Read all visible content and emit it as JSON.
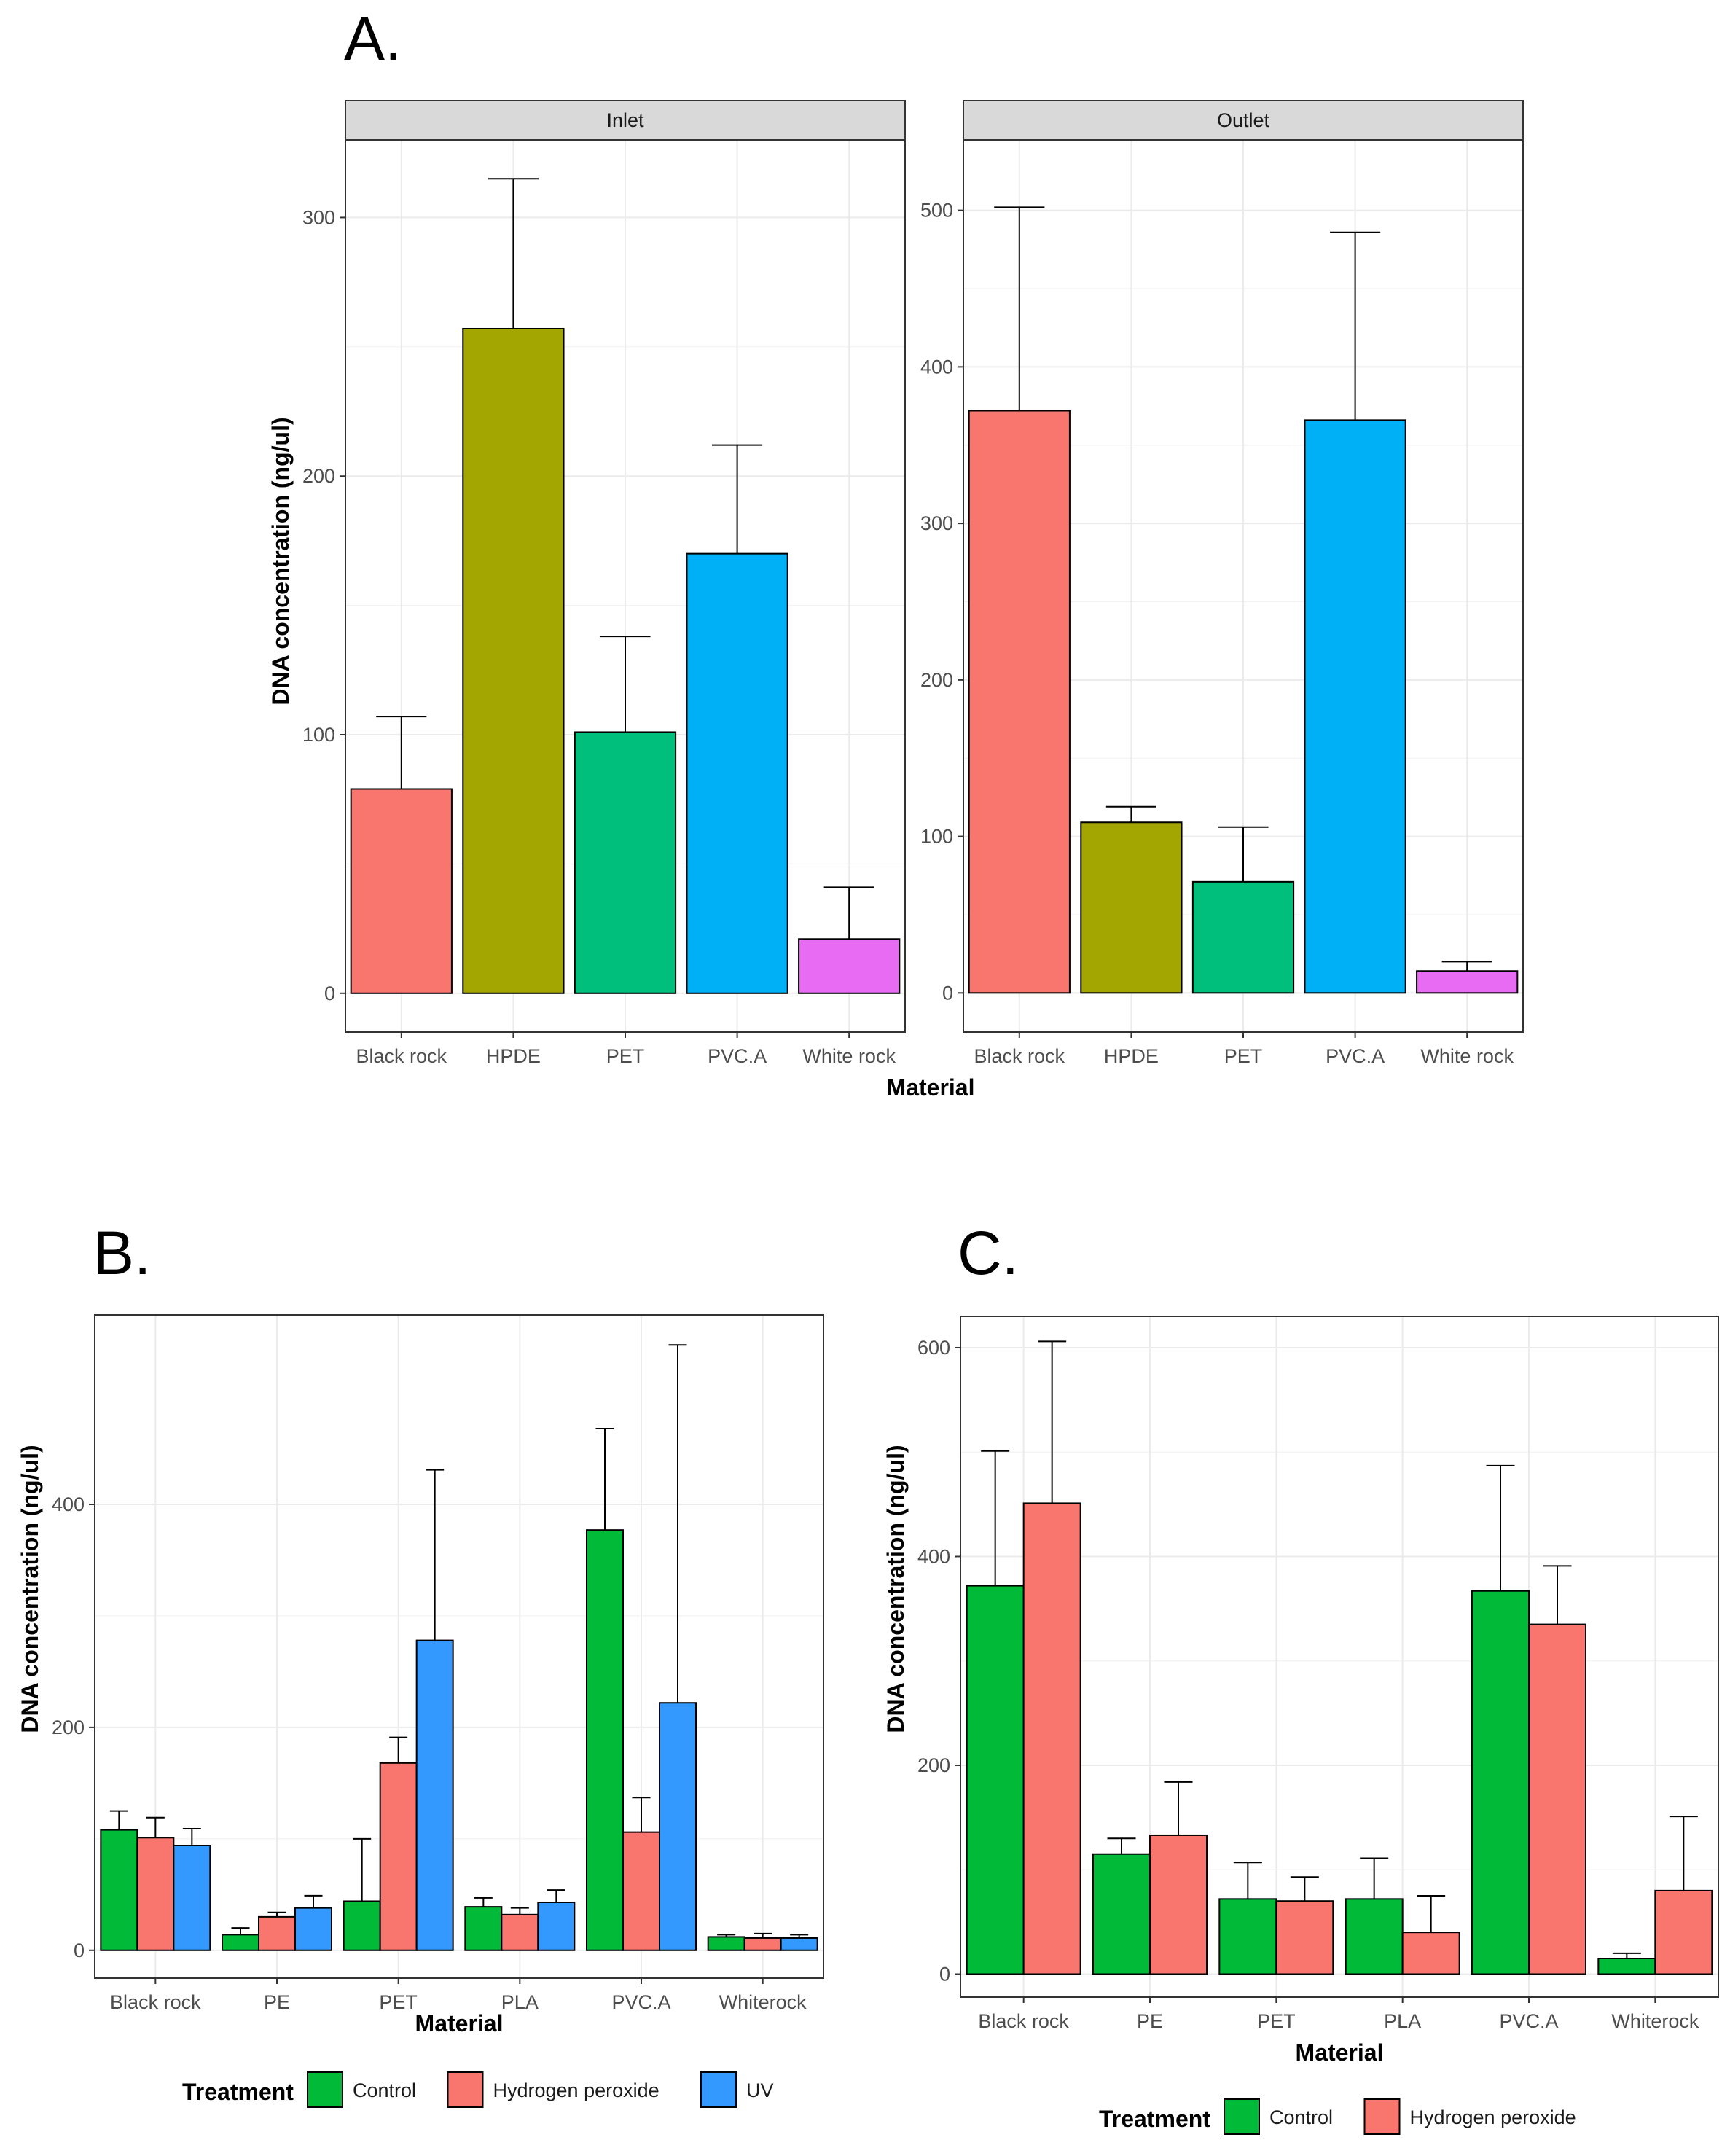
{
  "figure": {
    "panel_a_label": "A.",
    "panel_b_label": "B.",
    "panel_c_label": "C."
  },
  "chart_data": [
    {
      "id": "A",
      "type": "bar",
      "facets": [
        "Inlet",
        "Outlet"
      ],
      "categories": [
        "Black rock",
        "HPDE",
        "PET",
        "PVC.A",
        "White rock"
      ],
      "xlabel": "Material",
      "ylabel": "DNA concentration (ng/ul)",
      "colors": [
        "#F8766D",
        "#A3A500",
        "#00BF7D",
        "#00B0F6",
        "#E76BF3"
      ],
      "panels": [
        {
          "facet": "Inlet",
          "ylim": [
            -15,
            330
          ],
          "ticks": [
            0,
            100,
            200,
            300
          ],
          "values": [
            79,
            257,
            101,
            170,
            21
          ],
          "errors": [
            107,
            315,
            138,
            212,
            41
          ]
        },
        {
          "facet": "Outlet",
          "ylim": [
            -25,
            545
          ],
          "ticks": [
            0,
            100,
            200,
            300,
            400,
            500
          ],
          "values": [
            372,
            109,
            71,
            366,
            14
          ],
          "errors": [
            502,
            119,
            106,
            486,
            20
          ]
        }
      ]
    },
    {
      "id": "B",
      "type": "bar",
      "categories": [
        "Black rock",
        "PE",
        "PET",
        "PLA",
        "PVC.A",
        "Whiterock"
      ],
      "xlabel": "Material",
      "ylabel": "DNA concentration (ng/ul)",
      "ylim": [
        -25,
        570
      ],
      "ticks": [
        0,
        200,
        400
      ],
      "legend_title": "Treatment",
      "series": [
        {
          "name": "Control",
          "color": "#00BA38",
          "values": [
            108,
            14,
            44,
            39,
            377,
            12
          ],
          "errors": [
            125,
            20,
            100,
            47,
            468,
            14
          ]
        },
        {
          "name": "Hydrogen peroxide",
          "color": "#F8766D",
          "values": [
            101,
            30,
            168,
            32,
            106,
            11
          ],
          "errors": [
            119,
            34,
            191,
            38,
            137,
            15
          ]
        },
        {
          "name": "UV",
          "color": "#3399FF",
          "values": [
            94,
            38,
            278,
            43,
            222,
            11
          ],
          "errors": [
            109,
            49,
            431,
            54,
            543,
            14
          ]
        }
      ]
    },
    {
      "id": "C",
      "type": "bar",
      "categories": [
        "Black rock",
        "PE",
        "PET",
        "PLA",
        "PVC.A",
        "Whiterock"
      ],
      "xlabel": "Material",
      "ylabel": "DNA concentration (ng/ul)",
      "ylim": [
        -22,
        630
      ],
      "ticks": [
        0,
        200,
        400,
        600
      ],
      "legend_title": "Treatment",
      "series": [
        {
          "name": "Control",
          "color": "#00BA38",
          "values": [
            372,
            115,
            72,
            72,
            367,
            15
          ],
          "errors": [
            501,
            130,
            107,
            111,
            487,
            20
          ]
        },
        {
          "name": "Hydrogen peroxide",
          "color": "#F8766D",
          "values": [
            451,
            133,
            70,
            40,
            335,
            80
          ],
          "errors": [
            606,
            184,
            93,
            75,
            391,
            151
          ]
        }
      ]
    }
  ]
}
